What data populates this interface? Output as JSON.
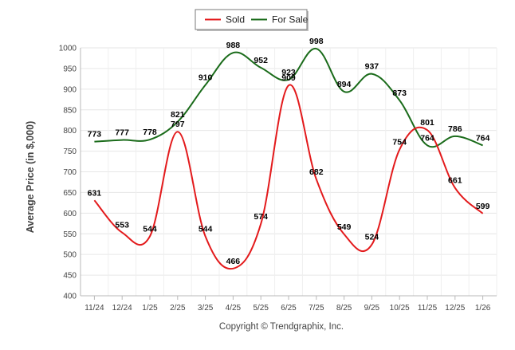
{
  "chart_data": {
    "type": "line",
    "title": "",
    "xlabel": "",
    "ylabel": "Average Price (in $,000)",
    "ylim": [
      400,
      1000
    ],
    "yticks": [
      "400",
      "450",
      "500",
      "550",
      "600",
      "650",
      "700",
      "750",
      "800",
      "850",
      "900",
      "950",
      "1000"
    ],
    "categories": [
      "11/24",
      "12/24",
      "1/25",
      "2/25",
      "3/25",
      "4/25",
      "5/25",
      "6/25",
      "7/25",
      "8/25",
      "9/25",
      "10/25",
      "11/25",
      "12/25",
      "1/26"
    ],
    "grid": true,
    "legend": "top-center",
    "credit": "Copyright © Trendgraphix, Inc.",
    "series": [
      {
        "name": "Sold",
        "color": "#e31a1c",
        "values": [
          631,
          553,
          544,
          797,
          544,
          466,
          574,
          909,
          682,
          549,
          524,
          754,
          801,
          661,
          599
        ],
        "labels": [
          "631",
          "553",
          "544",
          "797",
          "544",
          "466",
          "574",
          "909",
          "682",
          "549",
          "524",
          "754",
          "801",
          "661",
          "599"
        ]
      },
      {
        "name": "For Sale",
        "color": "#1a6b1a",
        "values": [
          773,
          777,
          778,
          821,
          910,
          988,
          952,
          923,
          998,
          894,
          937,
          873,
          764,
          786,
          764
        ],
        "labels": [
          "773",
          "777",
          "778",
          "821",
          "910",
          "988",
          "952",
          "923",
          "998",
          "894",
          "937",
          "873",
          "764",
          "786",
          "764"
        ]
      }
    ]
  }
}
